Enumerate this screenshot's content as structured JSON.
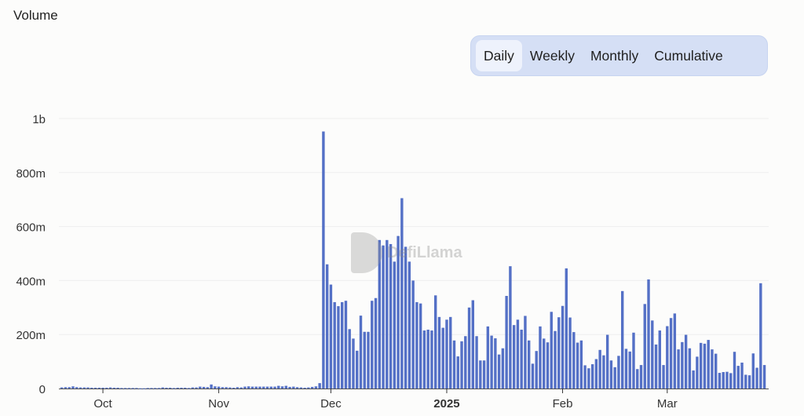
{
  "title": "Volume",
  "toggle": {
    "options": [
      "Daily",
      "Weekly",
      "Monthly",
      "Cumulative"
    ],
    "selected": "Daily"
  },
  "watermark": "DefiLlama",
  "colors": {
    "bar": "#5470c6",
    "toggle_bg": "#d5dff5",
    "toggle_active": "#eef2fc",
    "grid": "#eeeeee"
  },
  "chart_data": {
    "type": "bar",
    "title": "Volume",
    "unit": "USD",
    "ylim": [
      0,
      1000000000
    ],
    "yticks": [
      {
        "value": 0,
        "label": "0"
      },
      {
        "value": 200000000,
        "label": "200m"
      },
      {
        "value": 400000000,
        "label": "400m"
      },
      {
        "value": 600000000,
        "label": "600m"
      },
      {
        "value": 800000000,
        "label": "800m"
      },
      {
        "value": 1000000000,
        "label": "1b"
      }
    ],
    "xticks": [
      {
        "date": "2024-10-01",
        "label": "Oct"
      },
      {
        "date": "2024-11-01",
        "label": "Nov"
      },
      {
        "date": "2024-12-01",
        "label": "Dec"
      },
      {
        "date": "2025-01-01",
        "label": "2025",
        "bold": true
      },
      {
        "date": "2025-02-01",
        "label": "Feb"
      },
      {
        "date": "2025-03-01",
        "label": "Mar"
      }
    ],
    "grid": true,
    "x_range": [
      "2024-09-20",
      "2025-03-28"
    ],
    "values_millions": [
      4,
      5,
      5,
      8,
      5,
      4,
      4,
      4,
      3,
      3,
      3,
      3,
      3,
      4,
      3,
      3,
      2,
      2,
      2,
      2,
      2,
      1,
      1,
      2,
      2,
      2,
      2,
      4,
      3,
      3,
      2,
      3,
      3,
      3,
      2,
      4,
      4,
      7,
      6,
      5,
      15,
      8,
      7,
      5,
      5,
      4,
      3,
      5,
      4,
      7,
      8,
      7,
      7,
      7,
      7,
      7,
      7,
      7,
      10,
      8,
      10,
      6,
      7,
      5,
      4,
      3,
      4,
      6,
      8,
      20,
      952,
      460,
      385,
      320,
      305,
      320,
      325,
      220,
      185,
      140,
      270,
      210,
      210,
      325,
      335,
      550,
      530,
      550,
      535,
      470,
      565,
      705,
      525,
      470,
      400,
      320,
      315,
      215,
      218,
      215,
      345,
      265,
      225,
      255,
      265,
      178,
      119,
      175,
      194,
      300,
      327,
      194,
      104,
      104,
      230,
      196,
      186,
      126,
      149,
      343,
      453,
      235,
      255,
      218,
      269,
      178,
      92,
      139,
      230,
      185,
      171,
      284,
      213,
      264,
      306,
      445,
      263,
      209,
      170,
      178,
      86,
      75,
      90,
      109,
      143,
      123,
      199,
      104,
      79,
      121,
      361,
      147,
      137,
      207,
      72,
      87,
      313,
      404,
      252,
      163,
      215,
      87,
      231,
      261,
      278,
      145,
      172,
      199,
      149,
      67,
      118,
      169,
      166,
      180,
      145,
      129,
      58,
      61,
      62,
      57,
      136,
      84,
      96,
      51,
      49,
      130,
      77,
      390,
      87
    ]
  }
}
